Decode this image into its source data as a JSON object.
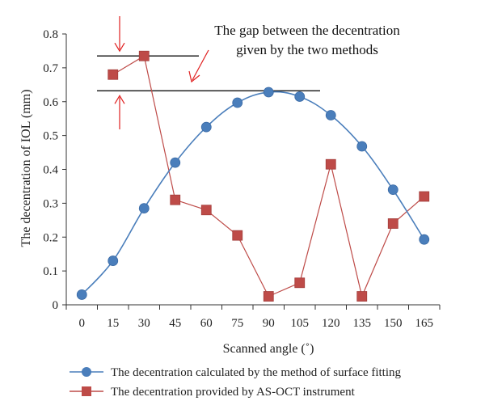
{
  "chart_data": {
    "type": "line",
    "title": "",
    "xlabel": "Scanned angle (˚)",
    "ylabel": "The decentration of IOL (mm)",
    "categories": [
      "0",
      "15",
      "30",
      "45",
      "60",
      "75",
      "90",
      "105",
      "120",
      "135",
      "150",
      "165"
    ],
    "x": [
      0,
      15,
      30,
      45,
      60,
      75,
      90,
      105,
      120,
      135,
      150,
      165
    ],
    "ylim": [
      0,
      0.8
    ],
    "yticks": [
      0,
      0.1,
      0.2,
      0.3,
      0.4,
      0.5,
      0.6,
      0.7,
      0.8
    ],
    "ytick_labels": [
      "0",
      "0.1",
      "0.2",
      "0.3",
      "0.4",
      "0.5",
      "0.6",
      "0.7",
      "0.8"
    ],
    "grid": false,
    "legend_position": "bottom",
    "series": [
      {
        "name": "The decentration calculated by the method of surface fitting",
        "color": "#4a7ebb",
        "marker": "circle",
        "smooth": true,
        "x": [
          0,
          15,
          30,
          45,
          60,
          75,
          90,
          105,
          120,
          135,
          150,
          165
        ],
        "values": [
          0.03,
          0.13,
          0.285,
          0.42,
          0.525,
          0.597,
          0.628,
          0.615,
          0.56,
          0.468,
          0.34,
          0.193
        ]
      },
      {
        "name": "The decentration provided by AS-OCT instrument",
        "color": "#be4b48",
        "marker": "square",
        "smooth": false,
        "x": [
          15,
          30,
          45,
          60,
          75,
          90,
          105,
          120,
          135,
          150,
          165
        ],
        "values": [
          0.68,
          0.735,
          0.31,
          0.28,
          0.205,
          0.025,
          0.065,
          0.415,
          0.025,
          0.24,
          0.32
        ]
      }
    ],
    "annotation": {
      "text_lines": [
        "The gap between the decentration",
        "given by the two methods"
      ],
      "upper_line_value": 0.735,
      "lower_line_value": 0.632,
      "arrow_color": "#e02020"
    }
  }
}
